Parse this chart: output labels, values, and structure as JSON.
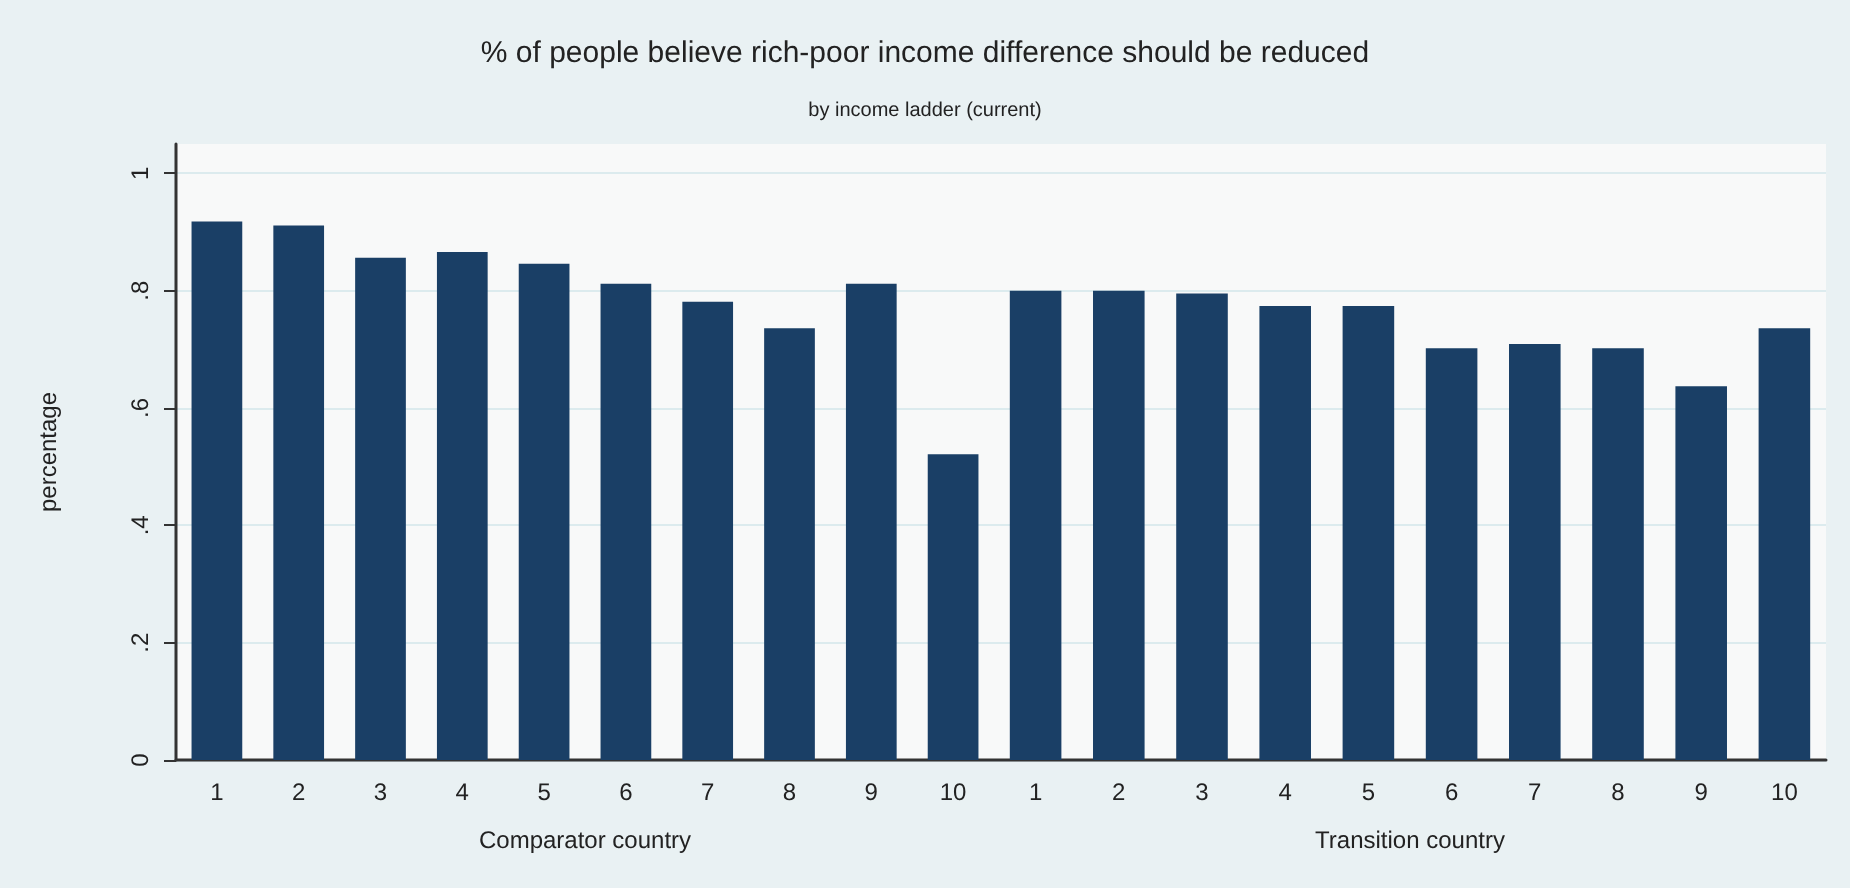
{
  "chart_data": [
    {
      "type": "bar",
      "title": "% of people believe rich-poor income difference should be reduced",
      "subtitle": "by income ladder (current)",
      "xlabel": "Comparator country",
      "ylabel": "percentage",
      "categories": [
        "1",
        "2",
        "3",
        "4",
        "5",
        "6",
        "7",
        "8",
        "9",
        "10"
      ],
      "series": [
        {
          "color": "#1a3f66",
          "values": [
            0.918,
            0.911,
            0.856,
            0.866,
            0.846,
            0.812,
            0.781,
            0.736,
            0.812,
            0.521
          ]
        }
      ],
      "ylim": [
        0,
        1.05
      ],
      "yticks": [
        0,
        {
          "value": 0.2,
          "label": ".2"
        },
        {
          "value": 0.4,
          "label": ".4"
        },
        {
          "value": 0.6,
          "label": ".6"
        },
        {
          "value": 0.8,
          "label": ".8"
        },
        1
      ],
      "grid": "y"
    },
    {
      "type": "bar",
      "xlabel": "Transition country",
      "categories": [
        "1",
        "2",
        "3",
        "4",
        "5",
        "6",
        "7",
        "8",
        "9",
        "10"
      ],
      "series": [
        {
          "color": "#1a3f66",
          "values": [
            0.8,
            0.8,
            0.795,
            0.774,
            0.774,
            0.702,
            0.709,
            0.702,
            0.637,
            0.736
          ]
        }
      ],
      "ylim": [
        0,
        1.05
      ],
      "yticks": [
        0,
        0.2,
        0.4,
        0.6,
        0.8,
        1
      ],
      "grid": "y",
      "tick_labels": "x"
    }
  ]
}
